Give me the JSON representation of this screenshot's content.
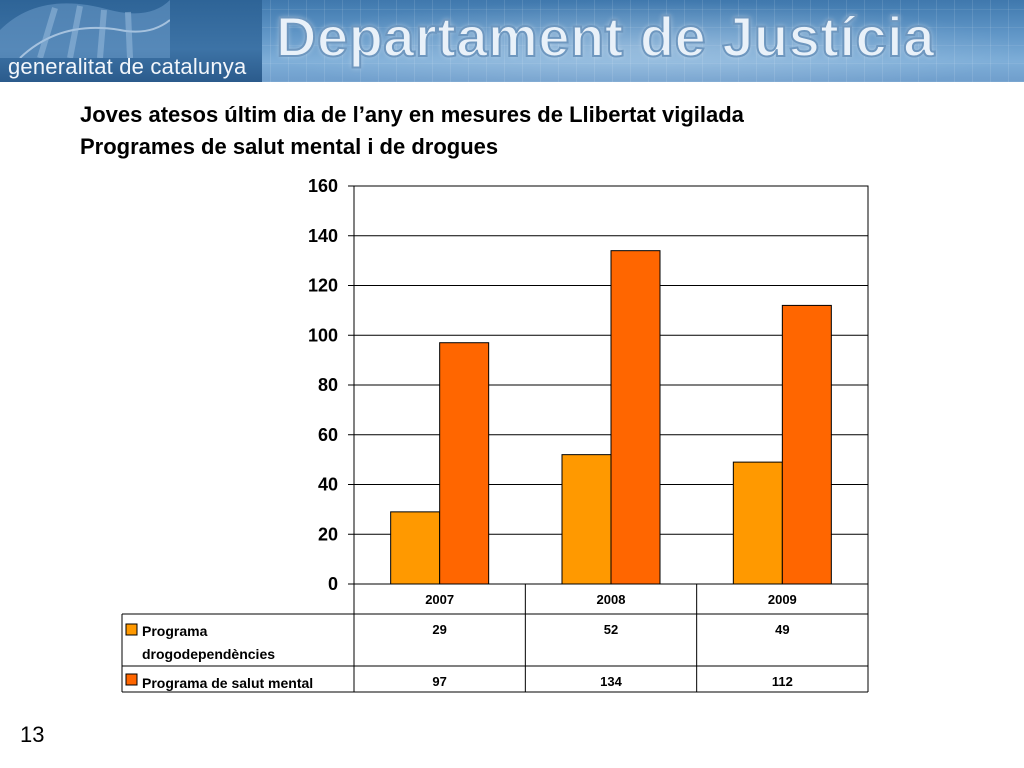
{
  "header": {
    "org_name": "generalitat de catalunya",
    "dept_name": "Departament de Justícia"
  },
  "title_line1": "Joves atesos últim dia de l’any en mesures de Llibertat vigilada",
  "title_line2": "Programes de salut mental  i de drogues",
  "slide_number": "13",
  "colors": {
    "series_drogo": "#ff9900",
    "series_salut": "#ff6600",
    "banner": "#5f95c6"
  },
  "chart_data": {
    "type": "bar",
    "categories": [
      "2007",
      "2008",
      "2009"
    ],
    "series": [
      {
        "name_line1": "Programa",
        "name_line2": "drogodependències",
        "values": [
          29,
          52,
          49
        ],
        "color": "#ff9900"
      },
      {
        "name_line1": "Programa de salut mental",
        "name_line2": "",
        "values": [
          97,
          134,
          112
        ],
        "color": "#ff6600"
      }
    ],
    "ylim": [
      0,
      160
    ],
    "yticks": [
      0,
      20,
      40,
      60,
      80,
      100,
      120,
      140,
      160
    ],
    "grid": true,
    "legend": "data-table-below"
  }
}
